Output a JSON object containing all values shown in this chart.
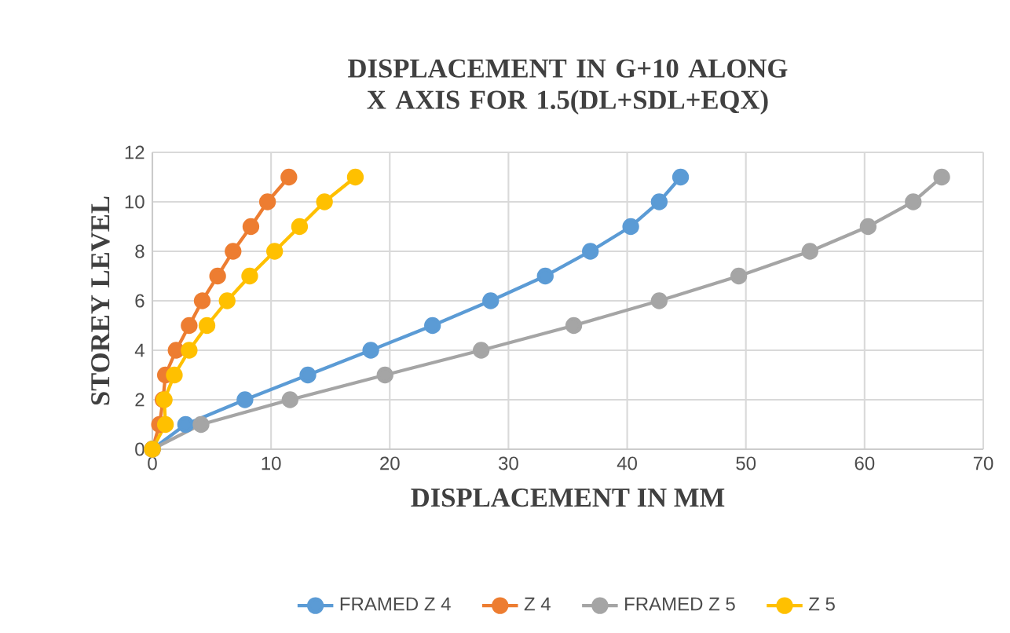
{
  "chart_data": {
    "type": "line",
    "title": "DISPLACEMENT IN G+10 ALONG X AXIS FOR 1.5(DL+SDL+EQX)",
    "xlabel": "DISPLACEMENT IN MM",
    "ylabel": "STOREY LEVEL",
    "xlim": [
      0,
      70
    ],
    "xticks": [
      0,
      10,
      20,
      30,
      40,
      50,
      60,
      70
    ],
    "ylim": [
      0,
      12
    ],
    "yticks": [
      0,
      2,
      4,
      6,
      8,
      10,
      12
    ],
    "grid": true,
    "legend": "bottom",
    "marker": "circle",
    "line_style": "solid",
    "series": [
      {
        "name": "FRAMED Z 4",
        "color": "#5b9bd5",
        "x": [
          0,
          2.8,
          7.8,
          13.1,
          18.4,
          23.6,
          28.5,
          33.1,
          36.9,
          40.3,
          42.7,
          44.5
        ],
        "values": [
          0,
          1,
          2,
          3,
          4,
          5,
          6,
          7,
          8,
          9,
          10,
          11
        ]
      },
      {
        "name": "Z 4",
        "color": "#ed7d31",
        "x": [
          0,
          0.6,
          0.9,
          1.1,
          2.0,
          3.1,
          4.2,
          5.5,
          6.8,
          8.3,
          9.7,
          11.5
        ],
        "values": [
          0,
          1,
          2,
          3,
          4,
          5,
          6,
          7,
          8,
          9,
          10,
          11
        ]
      },
      {
        "name": "FRAMED Z 5",
        "color": "#a5a5a5",
        "x": [
          0,
          4.1,
          11.6,
          19.6,
          27.7,
          35.5,
          42.7,
          49.4,
          55.4,
          60.3,
          64.1,
          66.5
        ],
        "values": [
          0,
          1,
          2,
          3,
          4,
          5,
          6,
          7,
          8,
          9,
          10,
          11
        ]
      },
      {
        "name": "Z 5",
        "color": "#ffc000",
        "x": [
          0,
          1.1,
          1.0,
          1.85,
          3.1,
          4.6,
          6.3,
          8.2,
          10.3,
          12.4,
          14.5,
          17.1
        ],
        "values": [
          0,
          1,
          2,
          3,
          4,
          5,
          6,
          7,
          8,
          9,
          10,
          11
        ]
      }
    ]
  }
}
